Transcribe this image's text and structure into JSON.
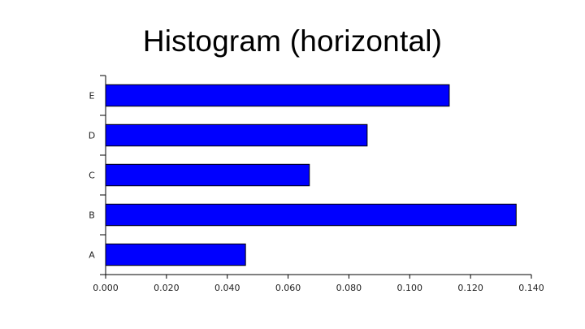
{
  "title": "Histogram (horizontal)",
  "chart_data": {
    "type": "bar",
    "orientation": "horizontal",
    "title": "Histogram (horizontal)",
    "categories": [
      "A",
      "B",
      "C",
      "D",
      "E"
    ],
    "values": [
      0.046,
      0.135,
      0.067,
      0.086,
      0.113
    ],
    "xlim": [
      0,
      0.14
    ],
    "x_ticks": [
      "0.000",
      "0.020",
      "0.040",
      "0.060",
      "0.080",
      "0.100",
      "0.120",
      "0.140"
    ],
    "xlabel": "",
    "ylabel": "",
    "grid": false,
    "legend": "none",
    "bar_color": "#0000ff",
    "bar_edge_color": "#000000"
  }
}
